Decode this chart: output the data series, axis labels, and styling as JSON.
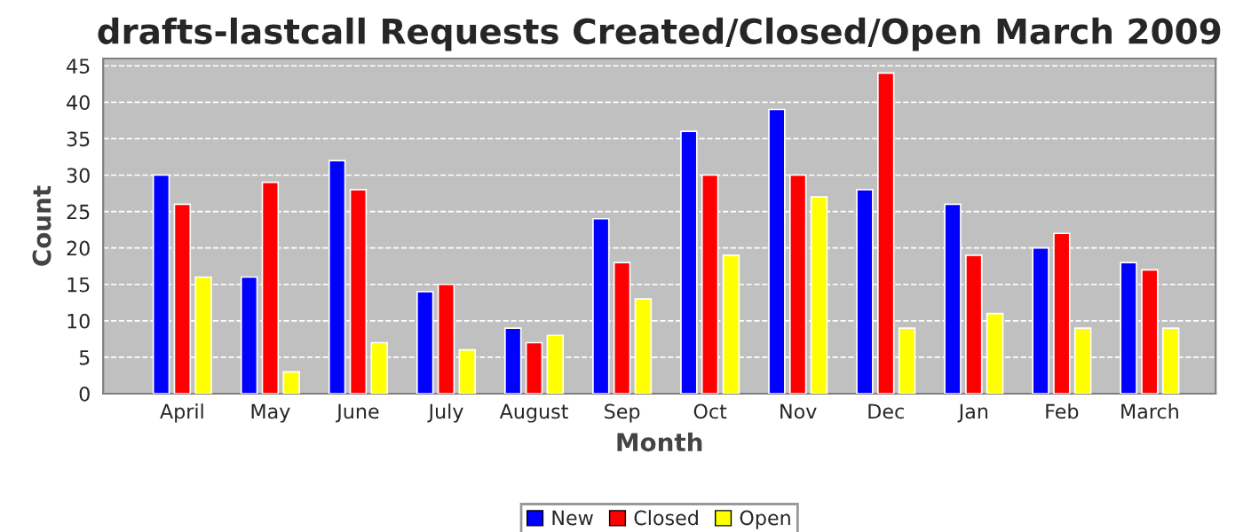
{
  "chart_data": {
    "type": "bar",
    "title": "drafts-lastcall Requests Created/Closed/Open March 2009",
    "xlabel": "Month",
    "ylabel": "Count",
    "categories": [
      "April",
      "May",
      "June",
      "July",
      "August",
      "Sep",
      "Oct",
      "Nov",
      "Dec",
      "Jan",
      "Feb",
      "March"
    ],
    "series": [
      {
        "name": "New",
        "color": "#0000ff",
        "values": [
          30,
          16,
          32,
          14,
          9,
          24,
          36,
          39,
          28,
          26,
          20,
          18
        ]
      },
      {
        "name": "Closed",
        "color": "#ff0000",
        "values": [
          26,
          29,
          28,
          15,
          7,
          18,
          30,
          30,
          44,
          19,
          22,
          17
        ]
      },
      {
        "name": "Open",
        "color": "#ffff00",
        "values": [
          16,
          3,
          7,
          6,
          8,
          13,
          19,
          27,
          9,
          11,
          9,
          9
        ]
      }
    ],
    "ylim": [
      0,
      46
    ],
    "yticks": [
      0,
      5,
      10,
      15,
      20,
      25,
      30,
      35,
      40,
      45
    ],
    "grid": "y",
    "legend": "bottom"
  }
}
